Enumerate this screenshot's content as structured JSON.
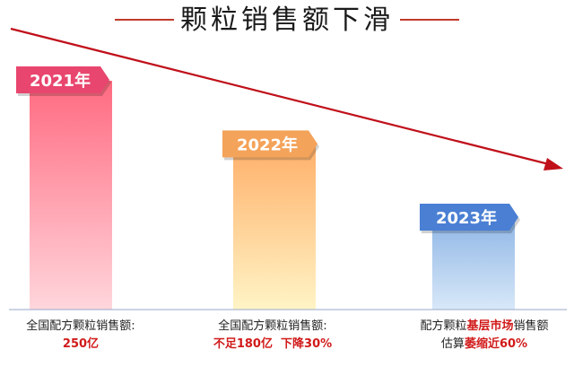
{
  "chart_data": {
    "type": "bar",
    "title": "颗粒销售额下滑",
    "categories": [
      "2021年",
      "2022年",
      "2023年"
    ],
    "values": [
      250,
      180,
      100
    ],
    "ylabel": "",
    "trend": "下降",
    "captions": [
      {
        "line1": [
          {
            "text": "全国配方颗粒销售额:",
            "hl": false
          }
        ],
        "line2": [
          {
            "text": "250亿",
            "hl": true
          }
        ]
      },
      {
        "line1": [
          {
            "text": "全国配方颗粒销售额:",
            "hl": false
          }
        ],
        "line2": [
          {
            "text": "不足180亿  下降30%",
            "hl": true
          }
        ]
      },
      {
        "line1": [
          {
            "text": "配方颗粒",
            "hl": false
          },
          {
            "text": "基层市场",
            "hl": true
          },
          {
            "text": "销售额",
            "hl": false
          }
        ],
        "line2": [
          {
            "text": "估算",
            "hl": false
          },
          {
            "text": "萎缩近60%",
            "hl": true
          }
        ]
      }
    ],
    "colors": {
      "bar1": [
        "#ff6a80",
        "#ffd6dc"
      ],
      "bar2": [
        "#ffb06a",
        "#fff4c6"
      ],
      "bar3": [
        "#8fb6e6",
        "#d8e8f8"
      ],
      "tag1": "#e8466e",
      "tag2": "#f4a35a",
      "tag3": "#4a7fd4",
      "arrow": "#c0101a",
      "highlight": "#d11a1a"
    }
  }
}
